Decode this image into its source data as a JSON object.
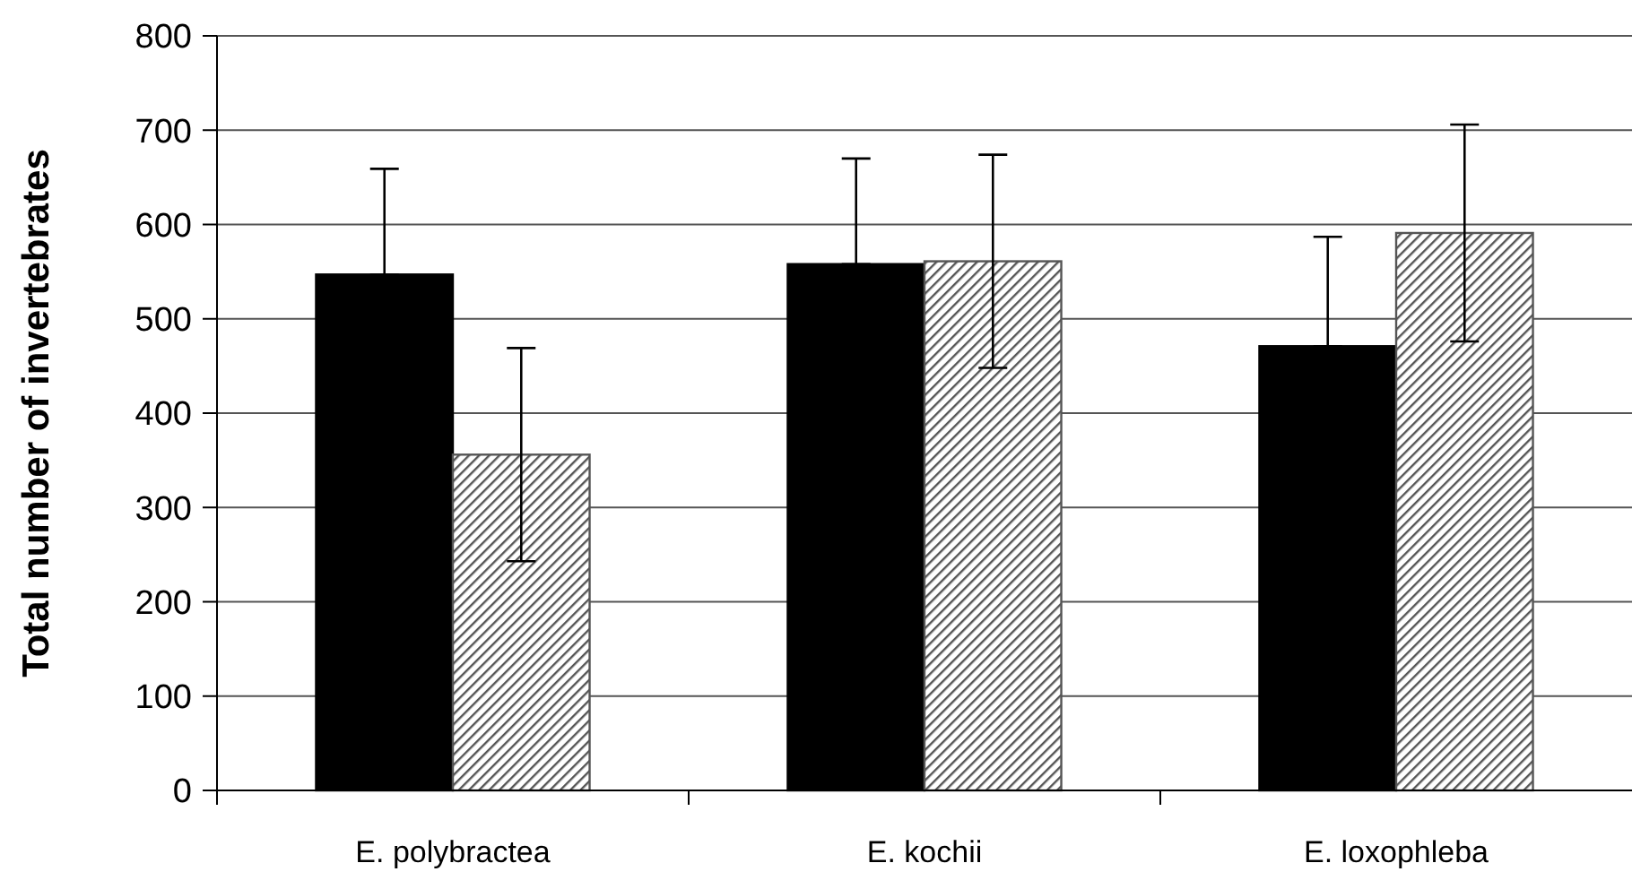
{
  "chart_data": {
    "type": "bar",
    "ylabel": "Total number of invertebrates",
    "categories": [
      "E. polybractea",
      "E. kochii",
      "E. loxophleba"
    ],
    "series": [
      {
        "color": "#000000",
        "values": [
          547,
          558,
          471
        ],
        "errors": [
          [
            547,
            659
          ],
          [
            558,
            670
          ],
          [
            471,
            587
          ]
        ]
      },
      {
        "color": "#555555",
        "values": [
          356,
          561,
          591
        ],
        "errors": [
          113,
          113,
          115
        ]
      }
    ],
    "ylim": [
      0,
      800
    ],
    "yticks": [
      0,
      100,
      200,
      300,
      400,
      500,
      600,
      700,
      800
    ],
    "grid": "y"
  }
}
